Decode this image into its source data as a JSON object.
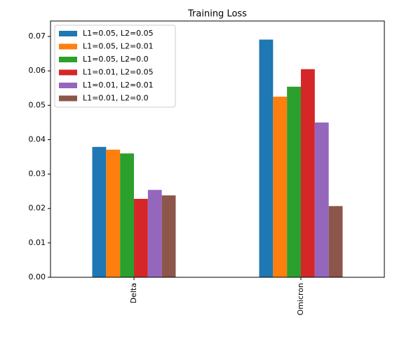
{
  "chart_data": {
    "type": "bar",
    "title": "Training Loss",
    "categories": [
      "Delta",
      "Omicron"
    ],
    "series": [
      {
        "name": "L1=0.05, L2=0.05",
        "color": "#1f77b4",
        "values": [
          0.0379,
          0.0691
        ]
      },
      {
        "name": "L1=0.05, L2=0.01",
        "color": "#ff7f0e",
        "values": [
          0.0371,
          0.0525
        ]
      },
      {
        "name": "L1=0.05, L2=0.0",
        "color": "#2ca02c",
        "values": [
          0.036,
          0.0554
        ]
      },
      {
        "name": "L1=0.01, L2=0.05",
        "color": "#d62728",
        "values": [
          0.0228,
          0.0605
        ]
      },
      {
        "name": "L1=0.01, L2=0.01",
        "color": "#9467bd",
        "values": [
          0.0254,
          0.045
        ]
      },
      {
        "name": "L1=0.01, L2=0.0",
        "color": "#8c564b",
        "values": [
          0.0238,
          0.0207
        ]
      }
    ],
    "ylim": [
      0,
      0.0745
    ],
    "yticks": [
      {
        "value": 0,
        "label": "0.00"
      },
      0.01,
      0.02,
      0.03,
      0.04,
      0.05,
      0.06,
      0.07
    ],
    "legend": "upper left"
  }
}
